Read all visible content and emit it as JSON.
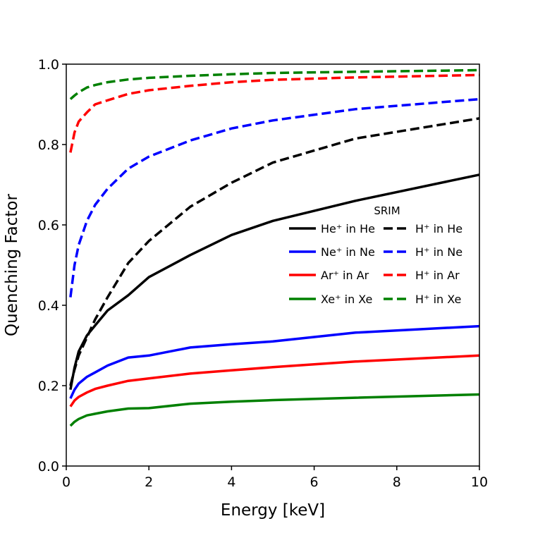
{
  "chart_data": {
    "type": "line",
    "xlabel": "Energy [keV]",
    "ylabel": "Quenching Factor",
    "xlim": [
      0,
      10
    ],
    "ylim": [
      0,
      1.0
    ],
    "x_ticks": [
      "0",
      "2",
      "4",
      "6",
      "8",
      "10"
    ],
    "y_ticks": [
      "0.0",
      "0.2",
      "0.4",
      "0.6",
      "0.8",
      "1.0"
    ],
    "grid": false,
    "legend": {
      "title": "SRIM",
      "placement": "center-right",
      "columns": 2
    },
    "series": [
      {
        "name": "He⁺ in He",
        "color": "#000000",
        "style": "solid",
        "x": [
          0.1,
          0.2,
          0.3,
          0.5,
          0.7,
          1.0,
          1.5,
          2.0,
          3.0,
          4.0,
          5.0,
          7.0,
          10.0
        ],
        "y": [
          0.19,
          0.245,
          0.285,
          0.325,
          0.35,
          0.387,
          0.425,
          0.47,
          0.525,
          0.575,
          0.61,
          0.66,
          0.725
        ]
      },
      {
        "name": "H⁺ in He",
        "color": "#000000",
        "style": "dashed",
        "x": [
          0.1,
          0.2,
          0.3,
          0.5,
          0.7,
          1.0,
          1.5,
          2.0,
          3.0,
          4.0,
          5.0,
          7.0,
          10.0
        ],
        "y": [
          0.2,
          0.24,
          0.275,
          0.32,
          0.365,
          0.42,
          0.505,
          0.56,
          0.645,
          0.705,
          0.755,
          0.815,
          0.865
        ]
      },
      {
        "name": "Ne⁺ in Ne",
        "color": "#0000ff",
        "style": "solid",
        "x": [
          0.1,
          0.2,
          0.3,
          0.5,
          0.7,
          1.0,
          1.5,
          2.0,
          3.0,
          4.0,
          5.0,
          7.0,
          10.0
        ],
        "y": [
          0.168,
          0.19,
          0.205,
          0.222,
          0.233,
          0.25,
          0.27,
          0.275,
          0.295,
          0.303,
          0.31,
          0.332,
          0.348
        ]
      },
      {
        "name": "H⁺ in Ne",
        "color": "#0000ff",
        "style": "dashed",
        "x": [
          0.1,
          0.2,
          0.3,
          0.5,
          0.7,
          1.0,
          1.5,
          2.0,
          3.0,
          4.0,
          5.0,
          7.0,
          10.0
        ],
        "y": [
          0.42,
          0.5,
          0.55,
          0.61,
          0.65,
          0.69,
          0.74,
          0.77,
          0.81,
          0.84,
          0.86,
          0.888,
          0.913
        ]
      },
      {
        "name": "Ar⁺ in Ar",
        "color": "#ff0000",
        "style": "solid",
        "x": [
          0.1,
          0.2,
          0.3,
          0.5,
          0.7,
          1.0,
          1.5,
          2.0,
          3.0,
          4.0,
          5.0,
          7.0,
          10.0
        ],
        "y": [
          0.148,
          0.163,
          0.172,
          0.183,
          0.192,
          0.2,
          0.212,
          0.218,
          0.23,
          0.238,
          0.246,
          0.26,
          0.275
        ]
      },
      {
        "name": "H⁺ in Ar",
        "color": "#ff0000",
        "style": "dashed",
        "x": [
          0.1,
          0.2,
          0.3,
          0.5,
          0.7,
          1.0,
          1.5,
          2.0,
          3.0,
          4.0,
          5.0,
          7.0,
          10.0
        ],
        "y": [
          0.78,
          0.83,
          0.857,
          0.88,
          0.9,
          0.91,
          0.926,
          0.935,
          0.946,
          0.955,
          0.961,
          0.967,
          0.973
        ]
      },
      {
        "name": "Xe⁺ in Xe",
        "color": "#008000",
        "style": "solid",
        "x": [
          0.1,
          0.2,
          0.3,
          0.5,
          0.7,
          1.0,
          1.5,
          2.0,
          3.0,
          4.0,
          5.0,
          7.0,
          10.0
        ],
        "y": [
          0.1,
          0.11,
          0.117,
          0.126,
          0.13,
          0.136,
          0.143,
          0.144,
          0.155,
          0.16,
          0.164,
          0.17,
          0.178
        ]
      },
      {
        "name": "H⁺ in Xe",
        "color": "#008000",
        "style": "dashed",
        "x": [
          0.1,
          0.2,
          0.3,
          0.5,
          0.7,
          1.0,
          1.5,
          2.0,
          3.0,
          4.0,
          5.0,
          7.0,
          10.0
        ],
        "y": [
          0.913,
          0.922,
          0.93,
          0.942,
          0.948,
          0.955,
          0.962,
          0.966,
          0.971,
          0.975,
          0.978,
          0.981,
          0.985
        ]
      }
    ]
  }
}
